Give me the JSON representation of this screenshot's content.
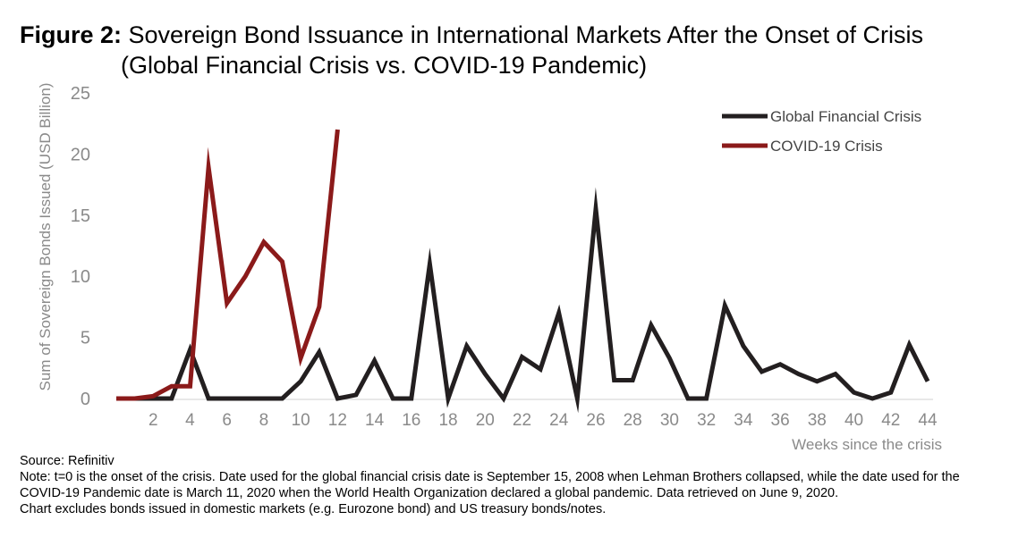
{
  "figure": {
    "label": "Figure 2:",
    "title_line1": "Sovereign Bond Issuance in International Markets After the Onset of Crisis",
    "title_line2": "(Global Financial Crisis vs. COVID-19 Pandemic)"
  },
  "notes": {
    "source": "Source: Refinitiv",
    "note": "Note: t=0 is the onset of the crisis. Date used for the global financial crisis date is September 15, 2008 when Lehman Brothers collapsed, while the date used for the COVID-19 Pandemic date is March 11, 2020 when the World Health Organization declared a global pandemic. Data retrieved on June 9, 2020.",
    "exclusion": "Chart excludes bonds issued in domestic markets (e.g. Eurozone bond) and US treasury bonds/notes."
  },
  "chart_data": {
    "type": "line",
    "title": "Sovereign Bond Issuance in International Markets After the Onset of Crisis (Global Financial Crisis vs. COVID-19 Pandemic)",
    "xlabel": "Weeks since the crisis",
    "ylabel": "Sum of Sovereign Bonds Issued (USD Billion)",
    "xlim": [
      0,
      44
    ],
    "ylim": [
      0,
      25
    ],
    "x_ticks": [
      2,
      4,
      6,
      8,
      10,
      12,
      14,
      16,
      18,
      20,
      22,
      24,
      26,
      28,
      30,
      32,
      34,
      36,
      38,
      40,
      42,
      44
    ],
    "y_ticks": [
      0,
      5,
      10,
      15,
      20,
      25
    ],
    "grid": false,
    "legend_position": "top-right",
    "series": [
      {
        "name": "Global Financial Crisis",
        "color": "#231f20",
        "x": [
          0,
          1,
          2,
          3,
          4,
          5,
          6,
          7,
          8,
          9,
          10,
          11,
          12,
          13,
          14,
          15,
          16,
          17,
          18,
          19,
          20,
          21,
          22,
          23,
          24,
          25,
          26,
          27,
          28,
          29,
          30,
          31,
          32,
          33,
          34,
          35,
          36,
          37,
          38,
          39,
          40,
          41,
          42,
          43,
          44
        ],
        "y": [
          0,
          0,
          0,
          0,
          4,
          0,
          0,
          0,
          0,
          0,
          1.4,
          3.8,
          0,
          0.3,
          3.1,
          0,
          0,
          11,
          0,
          4.3,
          2,
          0,
          3.4,
          2.4,
          7,
          0,
          15.5,
          1.5,
          1.5,
          6,
          3.3,
          0,
          0,
          7.6,
          4.3,
          2.2,
          2.8,
          2,
          1.4,
          2,
          0.5,
          0,
          0.5,
          4.4,
          1.4
        ]
      },
      {
        "name": "COVID-19 Crisis",
        "color": "#8b1a1a",
        "x": [
          0,
          1,
          2,
          3,
          4,
          5,
          6,
          7,
          8,
          9,
          10,
          11,
          12
        ],
        "y": [
          0,
          0,
          0.2,
          1,
          1,
          18.9,
          7.8,
          10,
          12.8,
          11.2,
          3.3,
          7.5,
          22
        ]
      }
    ]
  }
}
